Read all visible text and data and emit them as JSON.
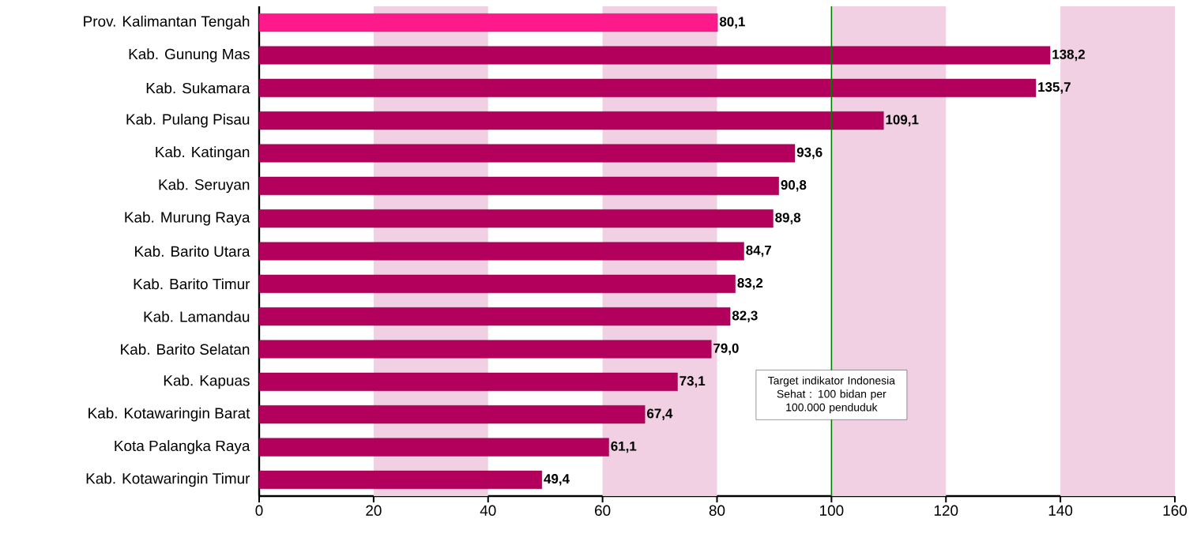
{
  "chart_data": {
    "type": "bar",
    "orientation": "horizontal",
    "categories": [
      "Prov. Kalimantan Tengah",
      "Kab. Gunung Mas",
      "Kab. Sukamara",
      "Kab. Pulang Pisau",
      "Kab. Katingan",
      "Kab. Seruyan",
      "Kab. Murung Raya",
      "Kab. Barito Utara",
      "Kab. Barito Timur",
      "Kab. Lamandau",
      "Kab. Barito Selatan",
      "Kab. Kapuas",
      "Kab. Kotawaringin Barat",
      "Kota Palangka Raya",
      "Kab. Kotawaringin Timur"
    ],
    "values": [
      80.1,
      138.2,
      135.7,
      109.1,
      93.6,
      90.8,
      89.8,
      84.7,
      83.2,
      82.3,
      79.0,
      73.1,
      67.4,
      61.1,
      49.4
    ],
    "value_labels": [
      "80,1",
      "138,2",
      "135,7",
      "109,1",
      "93,6",
      "90,8",
      "89,8",
      "84,7",
      "83,2",
      "82,3",
      "79,0",
      "73,1",
      "67,4",
      "61,1",
      "49,4"
    ],
    "colors": [
      "#ff1a8c",
      "#b3005c",
      "#b3005c",
      "#b3005c",
      "#b3005c",
      "#b3005c",
      "#b3005c",
      "#b3005c",
      "#b3005c",
      "#b3005c",
      "#b3005c",
      "#b3005c",
      "#b3005c",
      "#b3005c",
      "#b3005c"
    ],
    "xlim": [
      0,
      160
    ],
    "xticks": [
      0,
      20,
      40,
      60,
      80,
      100,
      120,
      140,
      160
    ],
    "ref_lines": [
      {
        "axis": "x",
        "value": 100,
        "label": "Target indikator Indonesia Sehat : 100 bidan per 100.000 penduduk",
        "color": "#008000"
      }
    ],
    "bands": [
      {
        "axis": "x",
        "from": 20,
        "to": 40,
        "color": "#f0d0e2"
      },
      {
        "axis": "x",
        "from": 60,
        "to": 80,
        "color": "#f0d0e2"
      },
      {
        "axis": "x",
        "from": 100,
        "to": 120,
        "color": "#f0d0e2"
      },
      {
        "axis": "x",
        "from": 140,
        "to": 160,
        "color": "#f0d0e2"
      }
    ]
  }
}
